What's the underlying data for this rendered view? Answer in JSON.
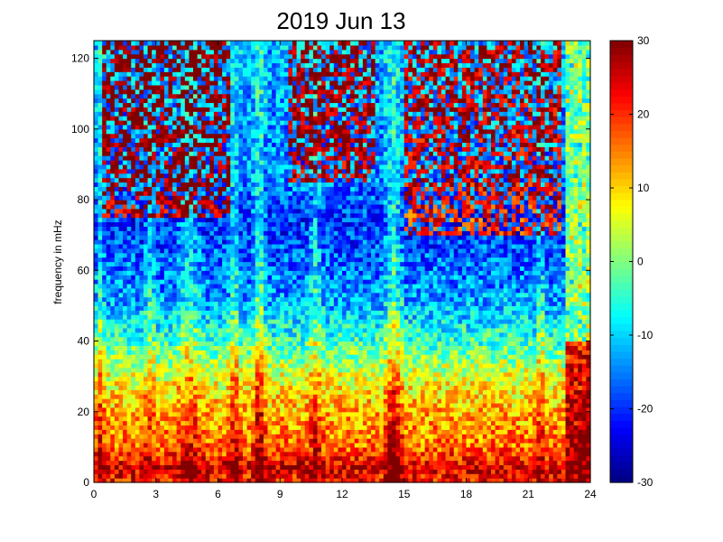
{
  "chart_data": {
    "type": "heatmap",
    "title": "2019 Jun 13",
    "xlabel": "",
    "ylabel": "frequency in mHz",
    "xlim": [
      0,
      24
    ],
    "ylim": [
      0,
      125
    ],
    "x_ticks": [
      "0",
      "3",
      "6",
      "9",
      "12",
      "15",
      "18",
      "21",
      "24"
    ],
    "y_ticks": [
      "0",
      "20",
      "40",
      "60",
      "80",
      "100",
      "120"
    ],
    "colorbar": {
      "colormap": "jet",
      "range": [
        -30,
        30
      ],
      "ticks": [
        "-30",
        "-20",
        "-10",
        "0",
        "10",
        "20",
        "30"
      ]
    },
    "grid": false,
    "x_resolution_hours": 0.2,
    "y_resolution_mHz": 1.25,
    "row_profile_mHz": [
      [
        2,
        22
      ],
      [
        4,
        26
      ],
      [
        6,
        22
      ],
      [
        10,
        16
      ],
      [
        20,
        12
      ],
      [
        30,
        6
      ],
      [
        40,
        -4
      ],
      [
        50,
        -12
      ],
      [
        60,
        -16
      ],
      [
        75,
        -20
      ],
      [
        85,
        -15
      ],
      [
        100,
        -14
      ],
      [
        125,
        -12
      ]
    ],
    "column_effects": [
      {
        "x": 0.3,
        "dx": 0.3,
        "v": 8
      },
      {
        "x": 2.7,
        "dx": 0.4,
        "v": 6
      },
      {
        "x": 4.6,
        "dx": 0.8,
        "v": 8
      },
      {
        "x": 6.8,
        "dx": 0.35,
        "v": 10
      },
      {
        "x": 8.0,
        "dx": 0.4,
        "v": 14
      },
      {
        "x": 10.7,
        "dx": 0.5,
        "v": 8
      },
      {
        "x": 14.5,
        "dx": 0.6,
        "v": 12
      },
      {
        "x": 21.6,
        "dx": 0.3,
        "v": 8
      }
    ],
    "high_frequency_background_patches": [
      {
        "x0": 0.5,
        "x1": 6.5,
        "y0": 75,
        "y1": 125,
        "v": 45
      },
      {
        "x0": 9.5,
        "x1": 13.5,
        "y0": 85,
        "y1": 125,
        "v": 42
      },
      {
        "x0": 15,
        "x1": 22.5,
        "y0": 70,
        "y1": 125,
        "v": 40
      }
    ],
    "final_hours_band": {
      "x0": 22.8,
      "x1": 24.0,
      "high_freq_value": 0,
      "low_freq_value": 32
    }
  }
}
